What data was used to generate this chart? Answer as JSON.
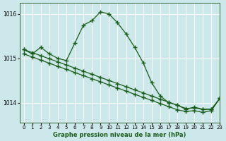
{
  "bg_color": "#cde8ea",
  "plot_bg_color": "#cde8ea",
  "grid_color": "#ffffff",
  "line_color": "#1a5c1a",
  "marker": "+",
  "marker_size": 4,
  "line_width": 0.9,
  "xlim": [
    -0.5,
    23
  ],
  "ylim": [
    1013.55,
    1016.25
  ],
  "yticks": [
    1014,
    1015,
    1016
  ],
  "xticks": [
    0,
    1,
    2,
    3,
    4,
    5,
    6,
    7,
    8,
    9,
    10,
    11,
    12,
    13,
    14,
    15,
    16,
    17,
    18,
    19,
    20,
    21,
    22,
    23
  ],
  "xlabel": "Graphe pression niveau de la mer (hPa)",
  "series": [
    {
      "x": [
        0,
        1,
        2,
        3,
        4,
        5,
        6,
        7,
        8,
        9,
        10,
        11,
        12,
        13,
        14,
        15,
        16,
        17,
        18,
        19,
        20,
        21,
        22,
        23
      ],
      "y": [
        1015.2,
        1015.1,
        1015.25,
        1015.1,
        1015.0,
        1014.95,
        1015.35,
        1015.75,
        1015.85,
        1016.05,
        1016.0,
        1015.8,
        1015.55,
        1015.25,
        1014.9,
        1014.45,
        1014.15,
        1014.0,
        1013.95,
        1013.85,
        1013.9,
        1013.85,
        1013.85,
        1014.1
      ]
    },
    {
      "x": [
        0,
        1,
        2,
        3,
        4,
        5,
        6,
        7,
        8,
        9,
        10,
        11,
        12,
        13,
        14,
        15,
        16,
        17,
        18,
        19,
        20,
        21,
        22,
        23
      ],
      "y": [
        1015.2,
        1015.13,
        1015.06,
        1014.99,
        1014.92,
        1014.85,
        1014.78,
        1014.71,
        1014.64,
        1014.57,
        1014.5,
        1014.43,
        1014.36,
        1014.29,
        1014.22,
        1014.15,
        1014.08,
        1014.01,
        1013.94,
        1013.87,
        1013.88,
        1013.85,
        1013.85,
        1014.1
      ]
    },
    {
      "x": [
        0,
        1,
        2,
        3,
        4,
        5,
        6,
        7,
        8,
        9,
        10,
        11,
        12,
        13,
        14,
        15,
        16,
        17,
        18,
        19,
        20,
        21,
        22,
        23
      ],
      "y": [
        1015.1,
        1015.03,
        1014.96,
        1014.89,
        1014.82,
        1014.75,
        1014.68,
        1014.61,
        1014.54,
        1014.47,
        1014.4,
        1014.33,
        1014.26,
        1014.19,
        1014.12,
        1014.05,
        1013.98,
        1013.91,
        1013.84,
        1013.8,
        1013.82,
        1013.78,
        1013.82,
        1014.1
      ]
    }
  ]
}
